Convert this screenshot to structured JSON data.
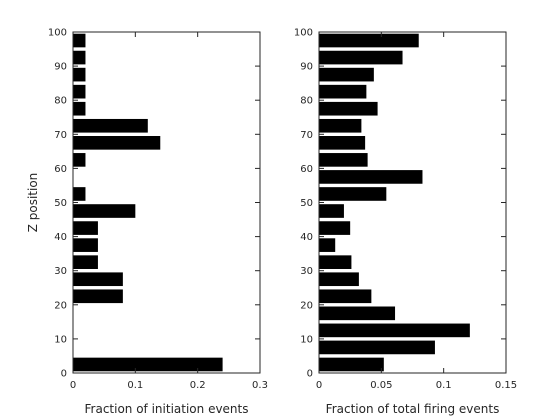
{
  "chart_data": [
    {
      "type": "bar",
      "orientation": "horizontal",
      "xlabel": "Fraction of initiation events",
      "ylabel": "Z position",
      "xlim": [
        0,
        0.3
      ],
      "ylim": [
        0,
        100
      ],
      "xticks": [
        "0",
        "0.1",
        "0.2",
        "0.3"
      ],
      "yticks": [
        "0",
        "10",
        "20",
        "30",
        "40",
        "50",
        "60",
        "70",
        "80",
        "90",
        "100"
      ],
      "bar_color": "#000000",
      "grid": false,
      "bars": [
        {
          "z": 2.5,
          "value": 0.24
        },
        {
          "z": 7.5,
          "value": 0
        },
        {
          "z": 12.5,
          "value": 0
        },
        {
          "z": 17.5,
          "value": 0
        },
        {
          "z": 22.5,
          "value": 0.08
        },
        {
          "z": 27.5,
          "value": 0.08
        },
        {
          "z": 32.5,
          "value": 0.04
        },
        {
          "z": 37.5,
          "value": 0.04
        },
        {
          "z": 42.5,
          "value": 0.04
        },
        {
          "z": 47.5,
          "value": 0.1
        },
        {
          "z": 52.5,
          "value": 0.02
        },
        {
          "z": 57.5,
          "value": 0
        },
        {
          "z": 62.5,
          "value": 0.02
        },
        {
          "z": 67.5,
          "value": 0.14
        },
        {
          "z": 72.5,
          "value": 0.12
        },
        {
          "z": 77.5,
          "value": 0.02
        },
        {
          "z": 82.5,
          "value": 0.02
        },
        {
          "z": 87.5,
          "value": 0.02
        },
        {
          "z": 92.5,
          "value": 0.02
        },
        {
          "z": 97.5,
          "value": 0.02
        }
      ]
    },
    {
      "type": "bar",
      "orientation": "horizontal",
      "xlabel": "Fraction of total firing events",
      "ylabel": "",
      "xlim": [
        0,
        0.15
      ],
      "ylim": [
        0,
        100
      ],
      "xticks": [
        "0",
        "0.05",
        "0.1",
        "0.15"
      ],
      "yticks": [
        "0",
        "10",
        "20",
        "30",
        "40",
        "50",
        "60",
        "70",
        "80",
        "90",
        "100"
      ],
      "bar_color": "#000000",
      "grid": false,
      "bars": [
        {
          "z": 2.5,
          "value": 0.052
        },
        {
          "z": 7.5,
          "value": 0.093
        },
        {
          "z": 12.5,
          "value": 0.121
        },
        {
          "z": 17.5,
          "value": 0.061
        },
        {
          "z": 22.5,
          "value": 0.042
        },
        {
          "z": 27.5,
          "value": 0.032
        },
        {
          "z": 32.5,
          "value": 0.026
        },
        {
          "z": 37.5,
          "value": 0.013
        },
        {
          "z": 42.5,
          "value": 0.025
        },
        {
          "z": 47.5,
          "value": 0.02
        },
        {
          "z": 52.5,
          "value": 0.054
        },
        {
          "z": 57.5,
          "value": 0.083
        },
        {
          "z": 62.5,
          "value": 0.039
        },
        {
          "z": 67.5,
          "value": 0.037
        },
        {
          "z": 72.5,
          "value": 0.034
        },
        {
          "z": 77.5,
          "value": 0.047
        },
        {
          "z": 82.5,
          "value": 0.038
        },
        {
          "z": 87.5,
          "value": 0.044
        },
        {
          "z": 92.5,
          "value": 0.067
        },
        {
          "z": 97.5,
          "value": 0.08
        }
      ]
    }
  ]
}
